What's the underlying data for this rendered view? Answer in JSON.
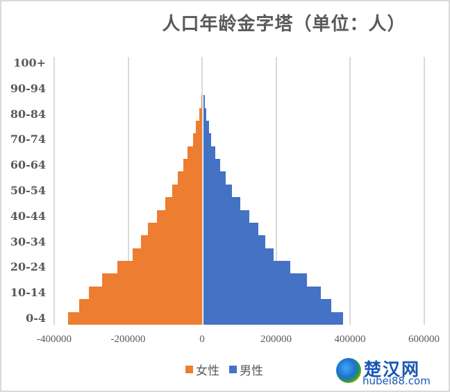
{
  "chart_data": {
    "type": "bar",
    "orientation": "horizontal",
    "title": "人口年龄金字塔（单位：人）",
    "xlabel": "",
    "ylabel": "",
    "xlim": [
      -400000,
      600000
    ],
    "x_ticks": [
      -400000,
      -200000,
      0,
      200000,
      400000,
      600000
    ],
    "x_tick_labels": [
      "-400000",
      "-200000",
      "0",
      "200000",
      "400000",
      "600000"
    ],
    "grid": true,
    "legend_position": "bottom",
    "categories": [
      "0-4",
      "5-9",
      "10-14",
      "15-19",
      "20-24",
      "25-29",
      "30-34",
      "35-39",
      "40-44",
      "45-49",
      "50-54",
      "55-59",
      "60-64",
      "65-69",
      "70-74",
      "75-79",
      "80-84",
      "85-89",
      "90-94",
      "95-99",
      "100+"
    ],
    "visible_category_labels": [
      "0-4",
      "10-14",
      "20-24",
      "30-34",
      "40-44",
      "50-54",
      "60-64",
      "70-74",
      "80-84",
      "90-94",
      "100+"
    ],
    "series": [
      {
        "name": "女性",
        "color": "#ed7d31",
        "values": [
          -362000,
          -332000,
          -306000,
          -270000,
          -229000,
          -188000,
          -165000,
          -146000,
          -122000,
          -100000,
          -81000,
          -66000,
          -51000,
          -39000,
          -24000,
          -17000,
          -8000,
          -1000,
          0,
          0,
          0
        ]
      },
      {
        "name": "男性",
        "color": "#4472c4",
        "values": [
          377000,
          346000,
          317000,
          280000,
          235000,
          190000,
          167000,
          148000,
          124000,
          100000,
          77000,
          60000,
          45000,
          32000,
          21000,
          15000,
          8000,
          3000,
          0,
          0,
          0
        ]
      }
    ]
  },
  "legend": {
    "items": [
      {
        "label": "女性",
        "color": "#ed7d31"
      },
      {
        "label": "男性",
        "color": "#4472c4"
      }
    ]
  },
  "watermark": {
    "name_cn": "楚汉网",
    "domain": "hubei88.com"
  }
}
